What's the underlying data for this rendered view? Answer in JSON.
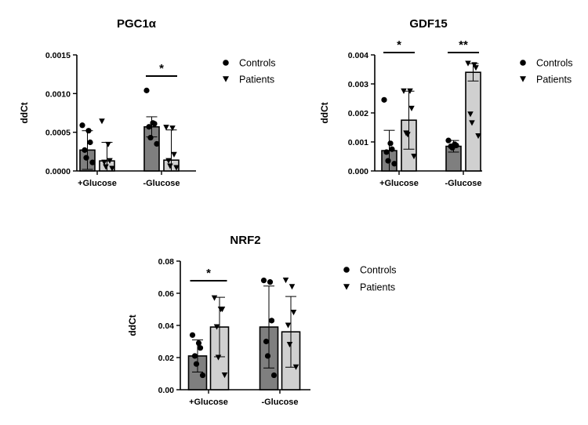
{
  "chart_data": [
    {
      "type": "bar",
      "title": "PGC1α",
      "xlabel": "",
      "ylabel": "ddCt",
      "ylim": [
        0,
        0.0015
      ],
      "yticks": [
        "0.0000",
        "0.0005",
        "0.0010",
        "0.0015"
      ],
      "ytick_values": [
        0,
        0.0005,
        0.001,
        0.0015
      ],
      "categories": [
        "+Glucose",
        "-Glucose"
      ],
      "legend": [
        "Controls",
        "Patients"
      ],
      "legend_position": "right",
      "grid": false,
      "series": [
        {
          "name": "Controls",
          "marker": "circle",
          "color": "#7f7f7f",
          "values": [
            0.00027,
            0.00057
          ],
          "errors": [
            0.00025,
            0.00013
          ],
          "points": [
            [
              0.00059,
              0.00052,
              0.00037,
              0.00027,
              0.00017,
              0.00011
            ],
            [
              0.00104,
              0.00062,
              0.00061,
              0.00057,
              0.00043,
              0.00035
            ]
          ]
        },
        {
          "name": "Patients",
          "marker": "triangle",
          "color": "#d0d0d0",
          "values": [
            0.00013,
            0.00014
          ],
          "errors": [
            0.00024,
            0.00039
          ],
          "points": [
            [
              0.00064,
              0.00034,
              0.00013,
              0.00011,
              5e-05,
              3e-05
            ],
            [
              0.00056,
              0.00055,
              0.00021,
              0.00013,
              6e-05,
              4e-05
            ]
          ]
        }
      ],
      "significance": [
        {
          "category": "-Glucose",
          "label": "*"
        }
      ]
    },
    {
      "type": "bar",
      "title": "GDF15",
      "xlabel": "",
      "ylabel": "ddCt",
      "ylim": [
        0,
        0.004
      ],
      "yticks": [
        "0.000",
        "0.001",
        "0.002",
        "0.003",
        "0.004"
      ],
      "ytick_values": [
        0,
        0.001,
        0.002,
        0.003,
        0.004
      ],
      "categories": [
        "+Glucose",
        "-Glucose"
      ],
      "legend": [
        "Controls",
        "Patients"
      ],
      "legend_position": "right",
      "grid": false,
      "series": [
        {
          "name": "Controls",
          "marker": "circle",
          "color": "#7f7f7f",
          "values": [
            0.0007,
            0.00085
          ],
          "errors": [
            0.0007,
            0.0002
          ],
          "points": [
            [
              0.00245,
              0.00095,
              0.00075,
              0.00065,
              0.00035,
              0.00025
            ],
            [
              0.00105,
              0.00092,
              0.00088,
              0.00085,
              0.0008
            ]
          ]
        },
        {
          "name": "Patients",
          "marker": "triangle",
          "color": "#d0d0d0",
          "values": [
            0.00175,
            0.0034
          ],
          "errors": [
            0.001,
            0.0003
          ],
          "points": [
            [
              0.00275,
              0.00275,
              0.00215,
              0.0013,
              0.00125,
              0.0005
            ],
            [
              0.0037,
              0.00365,
              0.00355,
              0.00195,
              0.00165,
              0.0012
            ]
          ]
        }
      ],
      "significance": [
        {
          "category": "+Glucose",
          "label": "*"
        },
        {
          "category": "-Glucose",
          "label": "**"
        }
      ]
    },
    {
      "type": "bar",
      "title": "NRF2",
      "xlabel": "",
      "ylabel": "ddCt",
      "ylim": [
        0,
        0.08
      ],
      "yticks": [
        "0.00",
        "0.02",
        "0.04",
        "0.06",
        "0.08"
      ],
      "ytick_values": [
        0,
        0.02,
        0.04,
        0.06,
        0.08
      ],
      "categories": [
        "+Glucose",
        "-Glucose"
      ],
      "legend": [
        "Controls",
        "Patients"
      ],
      "legend_position": "right",
      "grid": false,
      "series": [
        {
          "name": "Controls",
          "marker": "circle",
          "color": "#7f7f7f",
          "values": [
            0.021,
            0.039
          ],
          "errors": [
            0.01,
            0.0255
          ],
          "points": [
            [
              0.034,
              0.029,
              0.026,
              0.021,
              0.016,
              0.009
            ],
            [
              0.068,
              0.067,
              0.043,
              0.03,
              0.021,
              0.009
            ]
          ]
        },
        {
          "name": "Patients",
          "marker": "triangle",
          "color": "#d0d0d0",
          "values": [
            0.039,
            0.036
          ],
          "errors": [
            0.0185,
            0.022
          ],
          "points": [
            [
              0.057,
              0.05,
              0.05,
              0.039,
              0.02,
              0.009
            ],
            [
              0.068,
              0.064,
              0.048,
              0.04,
              0.028,
              0.014
            ]
          ]
        }
      ],
      "significance": [
        {
          "category": "+Glucose",
          "label": "*"
        }
      ]
    }
  ]
}
